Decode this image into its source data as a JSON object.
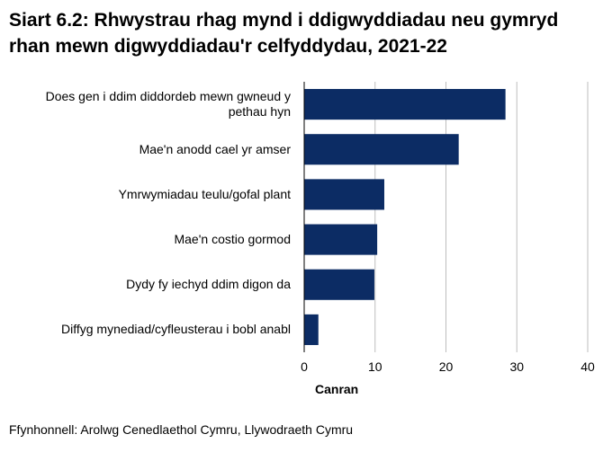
{
  "chart_data": {
    "type": "bar",
    "orientation": "horizontal",
    "title": "Siart 6.2: Rhwystrau rhag mynd i ddigwyddiadau neu gymryd rhan mewn digwyddiadau'r celfyddydau, 2021-22",
    "categories": [
      "Does gen i ddim diddordeb mewn gwneud y pethau hyn",
      "Mae'n anodd cael yr amser",
      "Ymrwymiadau teulu/gofal plant",
      "Mae'n costio gormod",
      "Dydy fy iechyd ddim digon da",
      "Diffyg mynediad/cyfleusterau i bobl anabl"
    ],
    "values": [
      28.4,
      21.8,
      11.3,
      10.3,
      9.9,
      2.0
    ],
    "color": "#0c2c64",
    "xlim": [
      0,
      40
    ],
    "xticks": [
      0,
      10,
      20,
      30,
      40
    ],
    "grid": true,
    "xlabel": "Canran",
    "source": "Ffynhonnell: Arolwg Cenedlaethol Cymru, Llywodraeth Cymru"
  }
}
